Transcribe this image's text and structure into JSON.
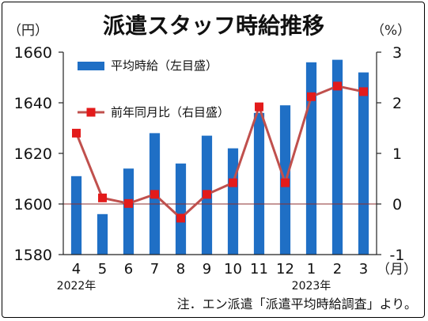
{
  "chart_data": {
    "type": "bar+line",
    "title": "派遣スタッフ時給推移",
    "left_unit": "（円）",
    "right_unit": "（%）",
    "x_unit": "（月）",
    "categories": [
      "4",
      "5",
      "6",
      "7",
      "8",
      "9",
      "10",
      "11",
      "12",
      "1",
      "2",
      "3"
    ],
    "year_labels": [
      {
        "category_index": 0,
        "text": "2022年"
      },
      {
        "category_index": 9,
        "text": "2023年"
      }
    ],
    "series": [
      {
        "name": "平均時給（左目盛）",
        "type": "bar",
        "axis": "left",
        "color": "#1f6fc5",
        "values": [
          1611,
          1596,
          1614,
          1628,
          1616,
          1627,
          1622,
          1636,
          1639,
          1656,
          1657,
          1652
        ]
      },
      {
        "name": "前年同月比（右目盛）",
        "type": "line",
        "axis": "right",
        "color": "#c0504d",
        "marker_color": "#e31b1b",
        "values": [
          1.4,
          0.12,
          0.01,
          0.19,
          -0.28,
          0.19,
          0.42,
          1.92,
          0.42,
          2.12,
          2.33,
          2.22
        ]
      }
    ],
    "y_left": {
      "min": 1580,
      "max": 1660,
      "ticks": [
        "1580",
        "1600",
        "1620",
        "1640",
        "1660"
      ]
    },
    "y_right": {
      "min": -1,
      "max": 3,
      "ticks": [
        "-1",
        "0",
        "1",
        "2",
        "3"
      ]
    },
    "zero_line": true,
    "grid": false,
    "legend_position": "top-left",
    "note": "注．エン派遣「派遣平均時給調査」より。"
  }
}
